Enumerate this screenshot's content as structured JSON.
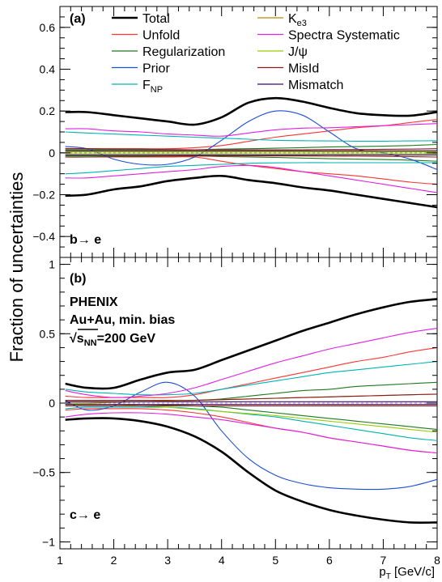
{
  "chart_data": [
    {
      "type": "line",
      "panel_label": "(a)",
      "annotation": "b→ e",
      "ylabel": "Fraction of uncertainties",
      "xlabel": "",
      "xlim": [
        1,
        8
      ],
      "ylim": [
        -0.5,
        0.7
      ],
      "y_ticks": [
        {
          "value": -0.4,
          "label": "−0.4"
        },
        {
          "value": -0.2,
          "label": "−0.2"
        },
        {
          "value": 0,
          "label": "0"
        },
        {
          "value": 0.2,
          "label": "0.2"
        },
        {
          "value": 0.4,
          "label": "0.4"
        },
        {
          "value": 0.6,
          "label": "0.6"
        }
      ],
      "x": [
        1.1,
        1.5,
        2.0,
        2.5,
        3.0,
        3.5,
        4.0,
        4.5,
        5.0,
        5.5,
        6.0,
        6.5,
        7.0,
        7.5,
        8.0
      ],
      "legend": {
        "placement": "top",
        "entries": [
          {
            "label": "Total",
            "color": "#000000",
            "bold": true
          },
          {
            "label": "Unfold",
            "color": "#ff3333"
          },
          {
            "label": "Regularization",
            "color": "#1e7a1e"
          },
          {
            "label": "Prior",
            "color": "#1a4fd6"
          },
          {
            "label_main": "F",
            "label_sub": "NP",
            "color": "#00b3b3"
          },
          {
            "label_main": "K",
            "label_sub": "e3",
            "color": "#b38a00"
          },
          {
            "label": "Spectra Systematic",
            "color": "#e020e0"
          },
          {
            "label": "J/ψ",
            "color": "#99cc00"
          },
          {
            "label": "MisId",
            "color": "#8b1a1a"
          },
          {
            "label": "Mismatch",
            "color": "#3a0a6e"
          }
        ]
      },
      "series": [
        {
          "color": "#000000",
          "bold": true,
          "values": [
            0.195,
            0.195,
            0.18,
            0.165,
            0.15,
            0.135,
            0.17,
            0.24,
            0.262,
            0.245,
            0.215,
            0.19,
            0.18,
            0.178,
            0.195
          ]
        },
        {
          "color": "#000000",
          "bold": true,
          "values": [
            -0.205,
            -0.2,
            -0.175,
            -0.16,
            -0.135,
            -0.12,
            -0.11,
            -0.13,
            -0.145,
            -0.165,
            -0.18,
            -0.2,
            -0.22,
            -0.24,
            -0.26
          ]
        },
        {
          "color": "#ff3333",
          "values": [
            0.02,
            0.02,
            0.02,
            0.02,
            0.02,
            0.025,
            0.035,
            0.055,
            0.075,
            0.09,
            0.105,
            0.12,
            0.13,
            0.145,
            0.16
          ]
        },
        {
          "color": "#ff3333",
          "values": [
            -0.02,
            -0.02,
            -0.02,
            -0.02,
            -0.02,
            -0.02,
            -0.04,
            -0.06,
            -0.075,
            -0.09,
            -0.1,
            -0.11,
            -0.125,
            -0.14,
            -0.15
          ]
        },
        {
          "color": "#1e7a1e",
          "values": [
            0.015,
            0.015,
            0.015,
            0.015,
            0.015,
            0.015,
            0.018,
            0.02,
            0.022,
            0.025,
            0.028,
            0.03,
            0.032,
            0.035,
            0.04
          ]
        },
        {
          "color": "#1e7a1e",
          "values": [
            -0.015,
            -0.015,
            -0.015,
            -0.015,
            -0.015,
            -0.015,
            -0.018,
            -0.02,
            -0.022,
            -0.025,
            -0.028,
            -0.03,
            -0.032,
            -0.035,
            -0.04
          ]
        },
        {
          "color": "#1a4fd6",
          "values": [
            0.03,
            0.02,
            -0.03,
            -0.055,
            -0.055,
            -0.02,
            0.06,
            0.15,
            0.2,
            0.18,
            0.1,
            0.02,
            0.0,
            -0.03,
            -0.08
          ]
        },
        {
          "color": "#00b3b3",
          "values": [
            0.1,
            0.095,
            0.09,
            0.085,
            0.08,
            0.075,
            0.07,
            0.065,
            0.06,
            0.058,
            0.057,
            0.056,
            0.056,
            0.057,
            0.058
          ]
        },
        {
          "color": "#00b3b3",
          "values": [
            -0.1,
            -0.095,
            -0.085,
            -0.075,
            -0.065,
            -0.06,
            -0.055,
            -0.05,
            -0.048,
            -0.047,
            -0.047,
            -0.047,
            -0.047,
            -0.047,
            -0.047
          ]
        },
        {
          "color": "#b38a00",
          "values": [
            0.008,
            0.008,
            0.008,
            0.008,
            0.008,
            0.008,
            0.008,
            0.008,
            0.008,
            0.008,
            0.008,
            0.008,
            0.008,
            0.008,
            0.008
          ]
        },
        {
          "color": "#e020e0",
          "values": [
            0.115,
            0.115,
            0.105,
            0.1,
            0.09,
            0.085,
            0.08,
            0.095,
            0.11,
            0.118,
            0.12,
            0.125,
            0.13,
            0.135,
            0.14
          ]
        },
        {
          "color": "#e020e0",
          "values": [
            -0.12,
            -0.12,
            -0.11,
            -0.1,
            -0.09,
            -0.08,
            -0.065,
            -0.06,
            -0.07,
            -0.09,
            -0.11,
            -0.13,
            -0.15,
            -0.17,
            -0.19
          ]
        },
        {
          "color": "#99cc00",
          "values": [
            0.004,
            0.004,
            0.004,
            0.004,
            0.004,
            0.004,
            0.004,
            0.004,
            0.004,
            0.004,
            0.004,
            0.004,
            0.004,
            0.004,
            0.004
          ]
        },
        {
          "color": "#99cc00",
          "values": [
            -0.004,
            -0.004,
            -0.004,
            -0.004,
            -0.004,
            -0.004,
            -0.004,
            -0.004,
            -0.004,
            -0.004,
            -0.004,
            -0.004,
            -0.004,
            -0.004,
            -0.004
          ]
        },
        {
          "color": "#8b1a1a",
          "values": [
            0.02,
            0.02,
            0.018,
            0.018,
            0.016,
            0.015,
            0.015,
            0.015,
            0.015,
            0.015,
            0.016,
            0.016,
            0.017,
            0.018,
            0.02
          ]
        },
        {
          "color": "#8b1a1a",
          "values": [
            -0.02,
            -0.02,
            -0.018,
            -0.018,
            -0.016,
            -0.015,
            -0.015,
            -0.015,
            -0.015,
            -0.015,
            -0.016,
            -0.016,
            -0.017,
            -0.018,
            -0.02
          ]
        },
        {
          "color": "#3a0a6e",
          "values": [
            0.01,
            0.01,
            0.01,
            0.01,
            0.01,
            0.01,
            0.01,
            0.01,
            0.01,
            0.01,
            0.01,
            0.01,
            0.01,
            0.01,
            0.01
          ]
        },
        {
          "color": "#3a0a6e",
          "values": [
            -0.01,
            -0.01,
            -0.01,
            -0.01,
            -0.01,
            -0.01,
            -0.01,
            -0.01,
            -0.01,
            -0.01,
            -0.01,
            -0.01,
            -0.01,
            -0.01,
            -0.01
          ]
        }
      ]
    },
    {
      "type": "line",
      "panel_label": "(b)",
      "annotation": "c→ e",
      "text_lines": [
        "PHENIX",
        "Au+Au, min. bias"
      ],
      "energy_label": {
        "sqrt_prefix": "√",
        "main": "s",
        "sub": "NN",
        "suffix": "=200 GeV"
      },
      "xlabel_main": "p",
      "xlabel_sub": "T",
      "xlabel_suffix": " [GeV/c]",
      "xlim": [
        1,
        8
      ],
      "ylim": [
        -1.05,
        1.05
      ],
      "x_ticks": [
        {
          "value": 1,
          "label": "1"
        },
        {
          "value": 2,
          "label": "2"
        },
        {
          "value": 3,
          "label": "3"
        },
        {
          "value": 4,
          "label": "4"
        },
        {
          "value": 5,
          "label": "5"
        },
        {
          "value": 6,
          "label": "6"
        },
        {
          "value": 7,
          "label": "7"
        },
        {
          "value": 8,
          "label": "8"
        }
      ],
      "y_ticks": [
        {
          "value": -1,
          "label": "−1"
        },
        {
          "value": -0.5,
          "label": "−0.5"
        },
        {
          "value": 0,
          "label": "0"
        },
        {
          "value": 0.5,
          "label": "0.5"
        },
        {
          "value": 1,
          "label": "1"
        }
      ],
      "x": [
        1.1,
        1.5,
        2.0,
        2.5,
        3.0,
        3.5,
        4.0,
        4.5,
        5.0,
        5.5,
        6.0,
        6.5,
        7.0,
        7.5,
        8.0
      ],
      "series": [
        {
          "color": "#000000",
          "bold": true,
          "values": [
            0.14,
            0.11,
            0.11,
            0.17,
            0.22,
            0.24,
            0.31,
            0.38,
            0.45,
            0.52,
            0.58,
            0.64,
            0.69,
            0.73,
            0.75
          ]
        },
        {
          "color": "#000000",
          "bold": true,
          "values": [
            -0.12,
            -0.11,
            -0.11,
            -0.13,
            -0.17,
            -0.24,
            -0.35,
            -0.5,
            -0.63,
            -0.71,
            -0.77,
            -0.81,
            -0.84,
            -0.86,
            -0.86
          ]
        },
        {
          "color": "#ff3333",
          "values": [
            0.05,
            0.04,
            0.04,
            0.04,
            0.04,
            0.06,
            0.1,
            0.14,
            0.18,
            0.22,
            0.26,
            0.3,
            0.33,
            0.37,
            0.4
          ]
        },
        {
          "color": "#ff3333",
          "values": [
            -0.05,
            -0.04,
            -0.04,
            -0.04,
            -0.05,
            -0.07,
            -0.1,
            -0.14,
            -0.18,
            -0.21,
            -0.25,
            -0.28,
            -0.31,
            -0.34,
            -0.36
          ]
        },
        {
          "color": "#1e7a1e",
          "values": [
            0.01,
            0.01,
            0.01,
            0.01,
            0.015,
            0.02,
            0.03,
            0.05,
            0.07,
            0.09,
            0.1,
            0.12,
            0.13,
            0.14,
            0.15
          ]
        },
        {
          "color": "#1e7a1e",
          "values": [
            -0.01,
            -0.01,
            -0.01,
            -0.01,
            -0.015,
            -0.02,
            -0.03,
            -0.05,
            -0.07,
            -0.09,
            -0.11,
            -0.13,
            -0.15,
            -0.17,
            -0.19
          ]
        },
        {
          "color": "#1a4fd6",
          "values": [
            0.02,
            -0.05,
            -0.02,
            0.08,
            0.15,
            0.05,
            -0.2,
            -0.4,
            -0.52,
            -0.58,
            -0.61,
            -0.62,
            -0.62,
            -0.6,
            -0.55
          ]
        },
        {
          "color": "#00b3b3",
          "values": [
            0.1,
            0.08,
            0.07,
            0.06,
            0.06,
            0.07,
            0.1,
            0.13,
            0.16,
            0.19,
            0.22,
            0.24,
            0.26,
            0.28,
            0.3
          ]
        },
        {
          "color": "#00b3b3",
          "values": [
            -0.04,
            -0.03,
            -0.03,
            -0.03,
            -0.03,
            -0.04,
            -0.06,
            -0.08,
            -0.1,
            -0.13,
            -0.16,
            -0.19,
            -0.22,
            -0.25,
            -0.27
          ]
        },
        {
          "color": "#b38a00",
          "values": [
            0.0,
            0.0,
            0.005,
            0.01,
            0.015,
            0.02,
            0.025,
            0.03,
            0.035,
            0.04,
            0.045,
            0.05,
            0.055,
            0.06,
            0.065
          ]
        },
        {
          "color": "#e020e0",
          "values": [
            0.09,
            0.06,
            0.04,
            0.05,
            0.07,
            0.11,
            0.17,
            0.23,
            0.29,
            0.34,
            0.39,
            0.43,
            0.47,
            0.51,
            0.54
          ]
        },
        {
          "color": "#e020e0",
          "values": [
            -0.1,
            -0.08,
            -0.07,
            -0.07,
            -0.08,
            -0.1,
            -0.12,
            -0.15,
            -0.18,
            -0.21,
            -0.25,
            -0.28,
            -0.31,
            -0.34,
            -0.36
          ]
        },
        {
          "color": "#99cc00",
          "values": [
            0.0,
            -0.005,
            -0.01,
            -0.02,
            -0.03,
            -0.045,
            -0.06,
            -0.075,
            -0.09,
            -0.11,
            -0.13,
            -0.15,
            -0.17,
            -0.19,
            -0.21
          ]
        },
        {
          "color": "#8b1a1a",
          "values": [
            0.02,
            0.02,
            0.02,
            0.02,
            0.02,
            0.02,
            0.025,
            0.03,
            0.035,
            0.04,
            0.045,
            0.05,
            0.055,
            0.06,
            0.065
          ]
        },
        {
          "color": "#8b1a1a",
          "values": [
            -0.02,
            -0.02,
            -0.02,
            -0.02,
            -0.02,
            -0.02,
            -0.02,
            -0.02,
            -0.02,
            -0.02,
            -0.02,
            -0.02,
            -0.02,
            -0.02,
            -0.02
          ]
        },
        {
          "color": "#3a0a6e",
          "values": [
            0.01,
            0.01,
            0.01,
            0.01,
            0.01,
            0.01,
            0.01,
            0.01,
            0.01,
            0.01,
            0.01,
            0.01,
            0.01,
            0.01,
            0.01
          ]
        },
        {
          "color": "#3a0a6e",
          "values": [
            -0.01,
            -0.01,
            -0.01,
            -0.01,
            -0.01,
            -0.01,
            -0.01,
            -0.01,
            -0.01,
            -0.01,
            -0.01,
            -0.01,
            -0.01,
            -0.01,
            -0.01
          ]
        }
      ]
    }
  ]
}
